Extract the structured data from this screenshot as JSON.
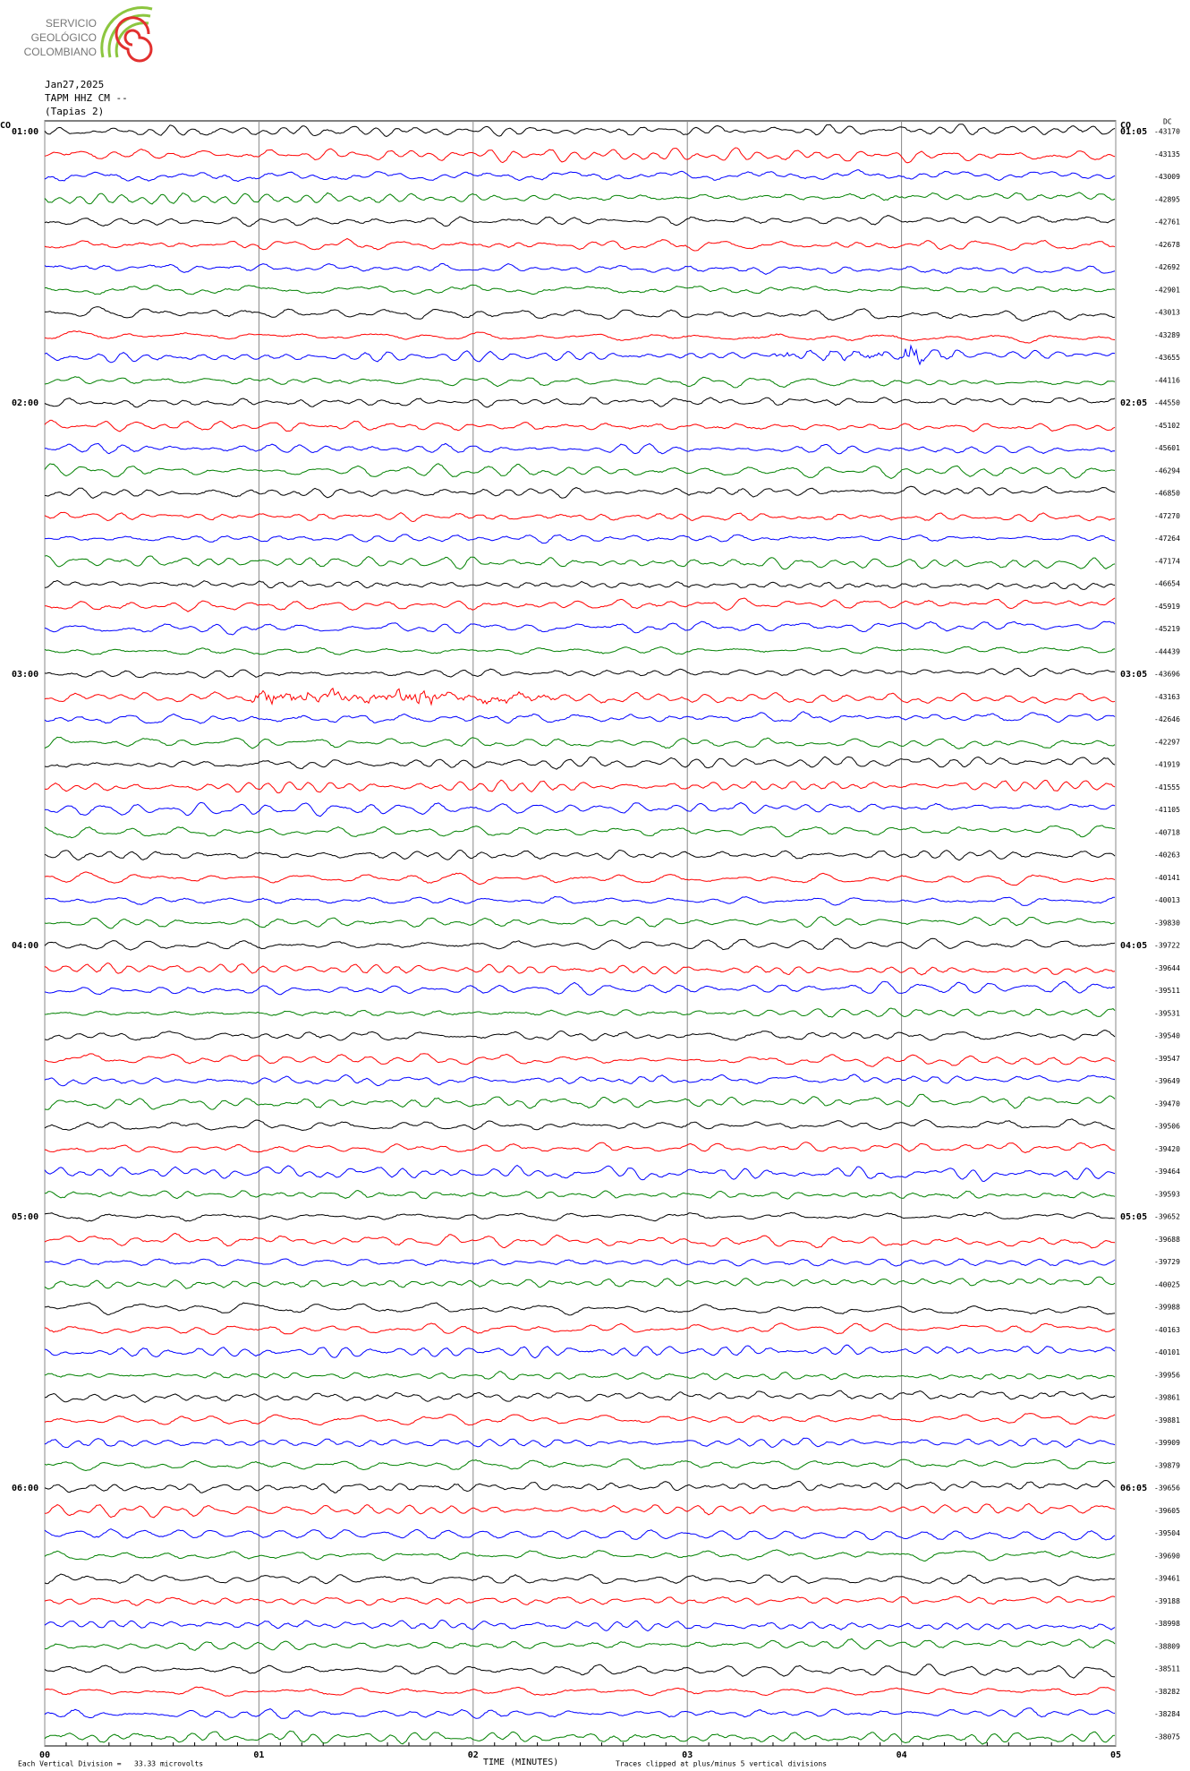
{
  "logo": {
    "lines": [
      "SERVICIO",
      "GEOLÓGICO",
      "COLOMBIANO"
    ]
  },
  "chart_data": {
    "type": "helicorder",
    "header": [
      "Jan27,2025",
      "TAPM HHZ CM --",
      "(Tapias 2)"
    ],
    "left_timezone": "CO",
    "right_timezone": "CO",
    "dc_label": "DC",
    "row_labels_left": [
      "01:00",
      null,
      null,
      null,
      null,
      null,
      null,
      null,
      null,
      null,
      null,
      null,
      "02:00",
      null,
      null,
      null,
      null,
      null,
      null,
      null,
      null,
      null,
      null,
      null,
      "03:00",
      null,
      null,
      null,
      null,
      null,
      null,
      null,
      null,
      null,
      null,
      null,
      "04:00",
      null,
      null,
      null,
      null,
      null,
      null,
      null,
      null,
      null,
      null,
      null,
      "05:00",
      null,
      null,
      null,
      null,
      null,
      null,
      null,
      null,
      null,
      null,
      null,
      "06:00",
      null,
      null,
      null,
      null,
      null,
      null,
      null,
      null,
      null,
      null,
      null
    ],
    "row_labels_right": [
      "01:05",
      null,
      null,
      null,
      null,
      null,
      null,
      null,
      null,
      null,
      null,
      null,
      "02:05",
      null,
      null,
      null,
      null,
      null,
      null,
      null,
      null,
      null,
      null,
      null,
      "03:05",
      null,
      null,
      null,
      null,
      null,
      null,
      null,
      null,
      null,
      null,
      null,
      "04:05",
      null,
      null,
      null,
      null,
      null,
      null,
      null,
      null,
      null,
      null,
      null,
      "05:05",
      null,
      null,
      null,
      null,
      null,
      null,
      null,
      null,
      null,
      null,
      null,
      "06:05",
      null,
      null,
      null,
      null,
      null,
      null,
      null,
      null,
      null,
      null,
      null
    ],
    "dc_values": [
      -43170,
      -43135,
      -43009,
      -42895,
      -42761,
      -42678,
      -42692,
      -42901,
      -43013,
      -43289,
      -43655,
      -44116,
      -44550,
      -45102,
      -45601,
      -46294,
      -46850,
      -47270,
      -47264,
      -47174,
      -46654,
      -45919,
      -45219,
      -44439,
      -43696,
      -43163,
      -42646,
      -42297,
      -41919,
      -41555,
      -41105,
      -40718,
      -40263,
      -40141,
      -40013,
      -39830,
      -39722,
      -39644,
      -39511,
      -39531,
      -39540,
      -39547,
      -39649,
      -39470,
      -39506,
      -39420,
      -39464,
      -39593,
      -39652,
      -39688,
      -39729,
      -40025,
      -39988,
      -40163,
      -40101,
      -39956,
      -39861,
      -39881,
      -39909,
      -39879,
      -39656,
      -39605,
      -39504,
      -39690,
      -39461,
      -39188,
      -38998,
      -38809,
      -38511,
      -38282,
      -38284,
      -38075
    ],
    "colors": [
      "#000000",
      "#ff0000",
      "#0000ff",
      "#008000"
    ],
    "xlim": [
      0,
      5
    ],
    "xticks": [
      {
        "value": 0,
        "label": "00"
      },
      {
        "value": 1,
        "label": "01"
      },
      {
        "value": 2,
        "label": "02"
      },
      {
        "value": 3,
        "label": "03"
      },
      {
        "value": 4,
        "label": "04"
      },
      {
        "value": 5,
        "label": "05"
      }
    ],
    "xlabel": "TIME (MINUTES)",
    "footer_left": "Each Vertical Division =   33.33 microvolts",
    "footer_right": "Traces clipped at plus/minus 5 vertical divisions"
  }
}
